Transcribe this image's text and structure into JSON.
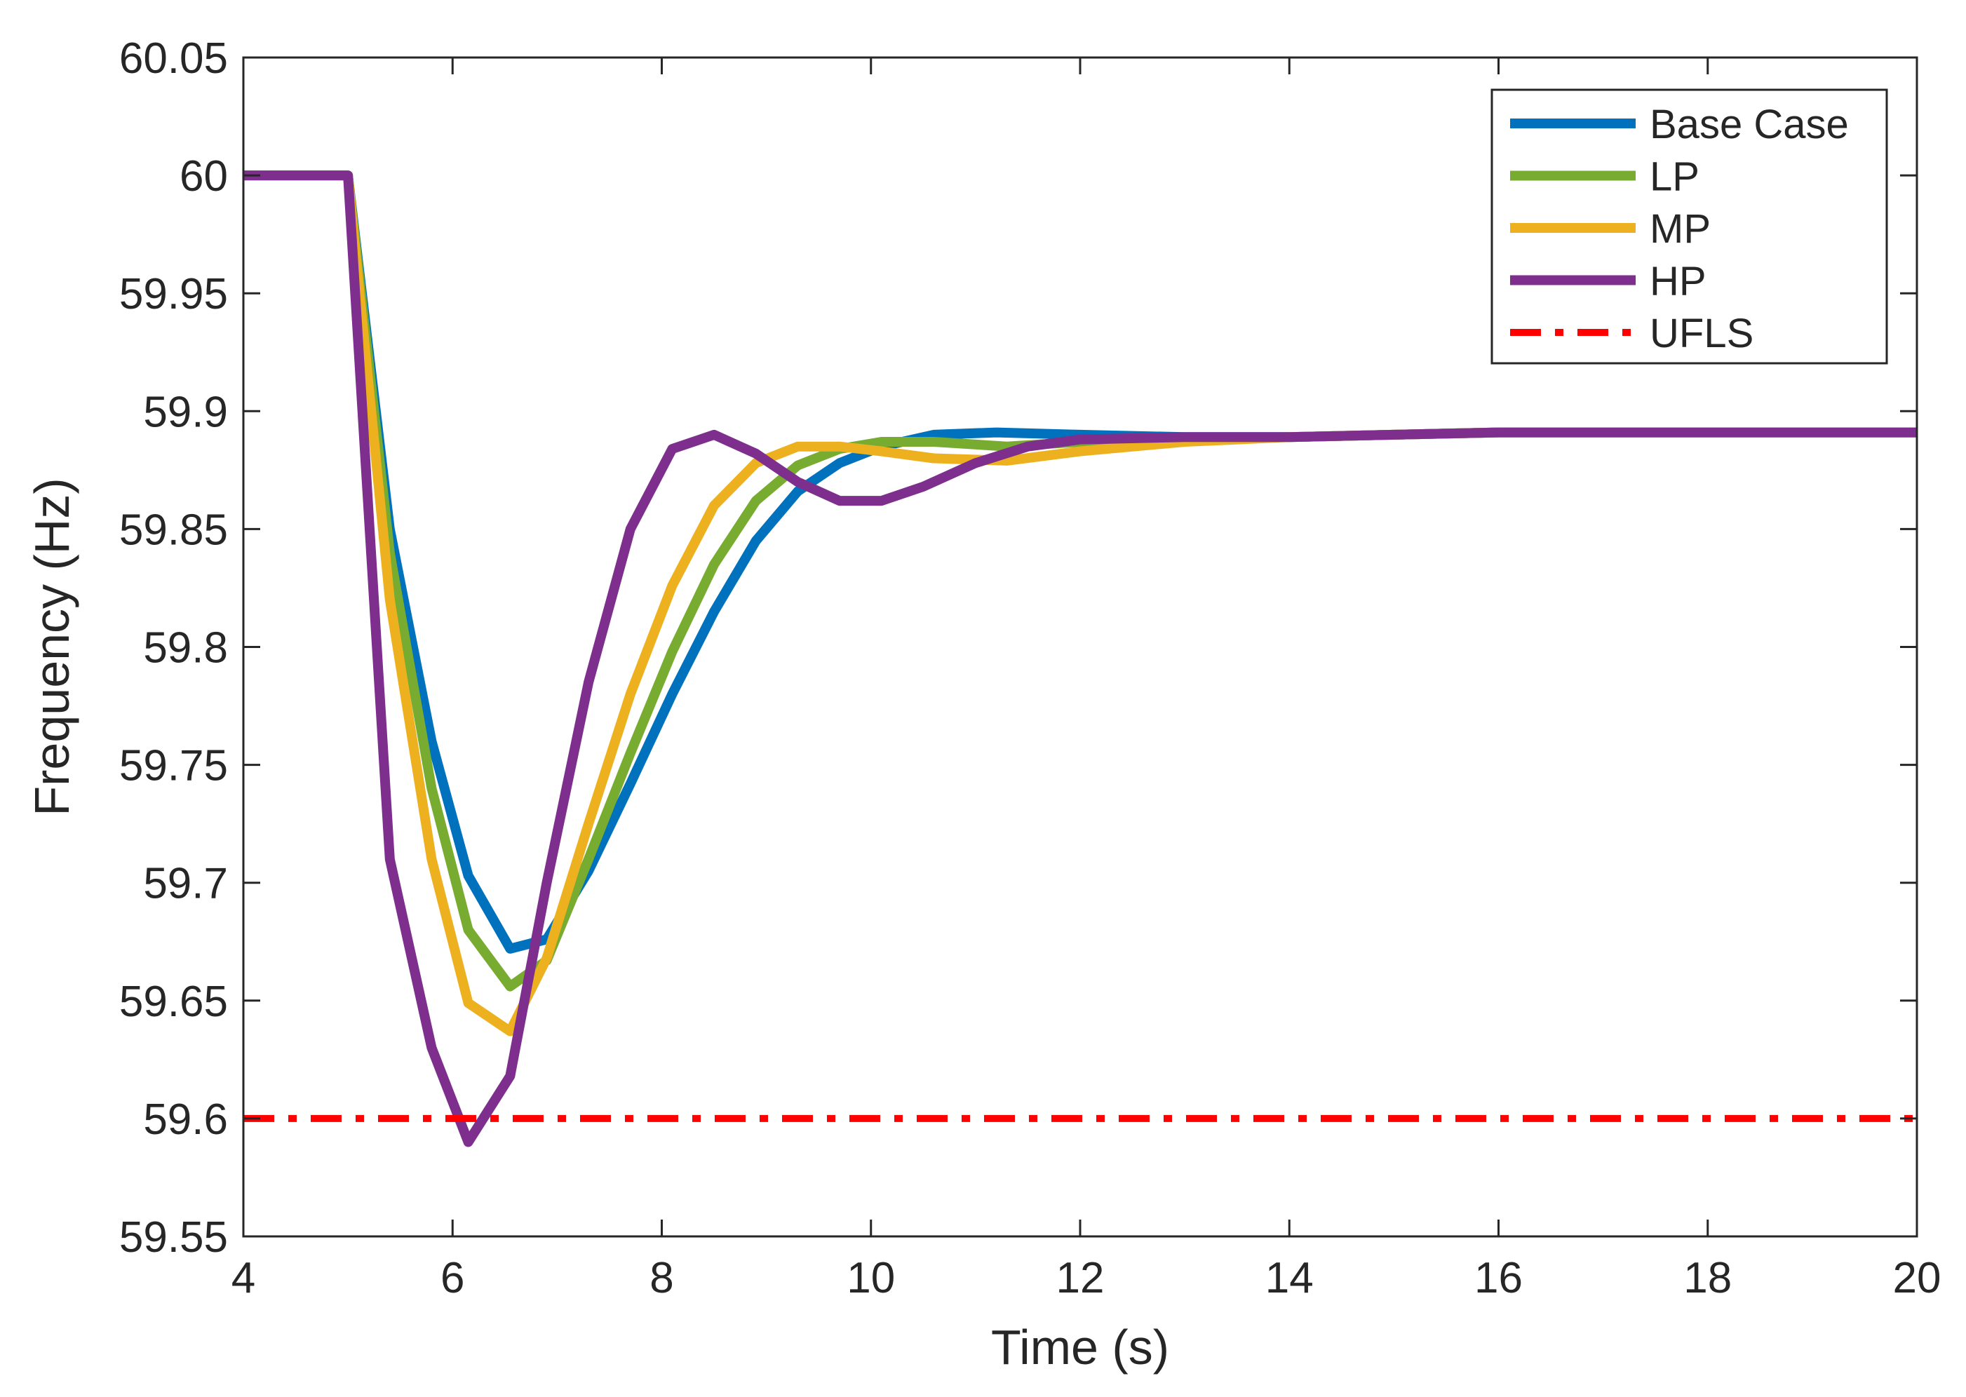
{
  "chart_data": {
    "type": "line",
    "title": "",
    "xlabel": "Time (s)",
    "ylabel": "Frequency (Hz)",
    "xlim": [
      4,
      20
    ],
    "ylim": [
      59.55,
      60.05
    ],
    "xticks": [
      4,
      6,
      8,
      10,
      12,
      14,
      16,
      18,
      20
    ],
    "xtick_labels": [
      "4",
      "6",
      "8",
      "10",
      "12",
      "14",
      "16",
      "18",
      "20"
    ],
    "yticks": [
      59.55,
      59.6,
      59.65,
      59.7,
      59.75,
      59.8,
      59.85,
      59.9,
      59.95,
      60,
      60.05
    ],
    "ytick_labels": [
      "59.55",
      "59.6",
      "59.65",
      "59.7",
      "59.75",
      "59.8",
      "59.85",
      "59.9",
      "59.95",
      "60",
      "60.05"
    ],
    "grid": false,
    "legend_position": "top-right",
    "series": [
      {
        "name": "Base Case",
        "color": "#0072BD",
        "style": "solid",
        "x": [
          4,
          5,
          5.4,
          5.8,
          6.15,
          6.55,
          6.9,
          7.3,
          7.7,
          8.1,
          8.5,
          8.9,
          9.3,
          9.7,
          10.1,
          10.6,
          11.2,
          12,
          13,
          14,
          15,
          16,
          18,
          20
        ],
        "y": [
          60,
          60,
          59.85,
          59.76,
          59.703,
          59.672,
          59.676,
          59.705,
          59.742,
          59.78,
          59.815,
          59.845,
          59.866,
          59.878,
          59.885,
          59.89,
          59.891,
          59.89,
          59.889,
          59.889,
          59.89,
          59.891,
          59.891,
          59.891
        ]
      },
      {
        "name": "LP",
        "color": "#77AC30",
        "style": "solid",
        "x": [
          4,
          5,
          5.4,
          5.8,
          6.15,
          6.55,
          6.9,
          7.3,
          7.7,
          8.1,
          8.5,
          8.9,
          9.3,
          9.7,
          10.1,
          10.6,
          11.3,
          12,
          13,
          14,
          15,
          16,
          18,
          20
        ],
        "y": [
          60,
          60,
          59.84,
          59.74,
          59.68,
          59.656,
          59.667,
          59.71,
          59.755,
          59.798,
          59.835,
          59.862,
          59.877,
          59.884,
          59.887,
          59.887,
          59.885,
          59.887,
          59.888,
          59.889,
          59.89,
          59.891,
          59.891,
          59.891
        ]
      },
      {
        "name": "MP",
        "color": "#EDB120",
        "style": "solid",
        "x": [
          4,
          5,
          5.4,
          5.8,
          6.15,
          6.55,
          6.9,
          7.3,
          7.7,
          8.1,
          8.5,
          8.9,
          9.3,
          9.7,
          10.1,
          10.6,
          11.3,
          12,
          13,
          14,
          15,
          16,
          18,
          20
        ],
        "y": [
          60,
          60,
          59.82,
          59.71,
          59.649,
          59.637,
          59.668,
          59.725,
          59.78,
          59.826,
          59.86,
          59.878,
          59.885,
          59.885,
          59.883,
          59.88,
          59.879,
          59.883,
          59.887,
          59.889,
          59.89,
          59.891,
          59.891,
          59.891
        ]
      },
      {
        "name": "HP",
        "color": "#7E2F8E",
        "style": "solid",
        "x": [
          4,
          5,
          5.4,
          5.8,
          6.15,
          6.55,
          6.9,
          7.3,
          7.7,
          8.1,
          8.5,
          8.9,
          9.3,
          9.7,
          10.1,
          10.5,
          11,
          11.5,
          12,
          13,
          14,
          15,
          16,
          18,
          20
        ],
        "y": [
          60,
          60,
          59.71,
          59.63,
          59.59,
          59.618,
          59.7,
          59.785,
          59.85,
          59.884,
          59.89,
          59.882,
          59.87,
          59.862,
          59.862,
          59.868,
          59.878,
          59.885,
          59.888,
          59.889,
          59.889,
          59.89,
          59.891,
          59.891,
          59.891
        ]
      },
      {
        "name": "UFLS",
        "color": "#FF0000",
        "style": "dashdot",
        "x": [
          4,
          20
        ],
        "y": [
          59.6,
          59.6
        ]
      }
    ]
  }
}
